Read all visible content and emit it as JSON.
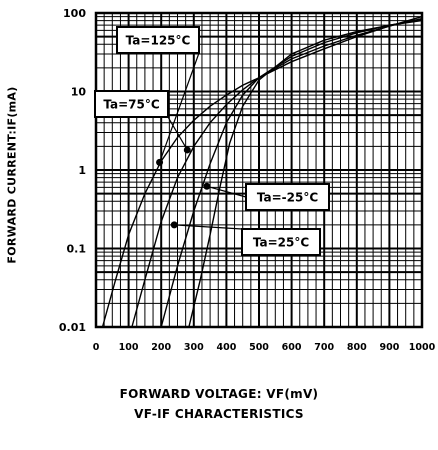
{
  "chart_data": {
    "type": "line",
    "title": "VF-IF CHARACTERISTICS",
    "xlabel": "FORWARD VOLTAGE: VF(mV)",
    "ylabel": "FORWARD CURRENT:IF(mA)",
    "xlim": [
      0,
      1000
    ],
    "ylim": [
      0.01,
      100
    ],
    "y_scale": "log",
    "grid": true,
    "x_ticks": [
      "0",
      "100",
      "200",
      "300",
      "400",
      "500",
      "600",
      "700",
      "800",
      "900",
      "1000"
    ],
    "y_ticks": [
      "0.01",
      "0.1",
      "1",
      "10",
      "100"
    ],
    "series": [
      {
        "name": "Ta=125°C",
        "x": [
          20,
          60,
          100,
          150,
          200,
          250,
          300,
          350,
          400,
          450,
          500,
          600,
          700,
          800,
          900,
          1000
        ],
        "y": [
          0.01,
          0.04,
          0.15,
          0.5,
          1.3,
          2.6,
          4.3,
          6.5,
          9.0,
          12,
          15,
          24,
          35,
          50,
          68,
          90
        ]
      },
      {
        "name": "Ta=75°C",
        "x": [
          110,
          150,
          200,
          250,
          300,
          350,
          400,
          450,
          500,
          600,
          700,
          800,
          900,
          1000
        ],
        "y": [
          0.01,
          0.04,
          0.22,
          0.8,
          2.0,
          4.0,
          6.8,
          10.5,
          15,
          26,
          38,
          52,
          68,
          85
        ]
      },
      {
        "name": "Ta=25°C",
        "x": [
          200,
          250,
          300,
          350,
          400,
          450,
          500,
          600,
          700,
          800,
          900,
          1000
        ],
        "y": [
          0.01,
          0.06,
          0.3,
          1.2,
          4.0,
          9.0,
          15,
          28,
          42,
          56,
          70,
          82
        ]
      },
      {
        "name": "Ta=-25°C",
        "x": [
          285,
          320,
          350,
          380,
          410,
          450,
          500,
          600,
          700,
          800,
          900,
          1000
        ],
        "y": [
          0.01,
          0.04,
          0.15,
          0.6,
          2.2,
          6.5,
          14,
          30,
          45,
          58,
          70,
          80
        ]
      }
    ],
    "annotations": [
      "Ta=125°C",
      "Ta=75°C",
      "Ta=-25°C",
      "Ta=25°C"
    ]
  }
}
